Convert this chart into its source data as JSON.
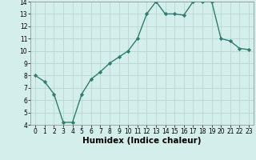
{
  "x": [
    0,
    1,
    2,
    3,
    4,
    5,
    6,
    7,
    8,
    9,
    10,
    11,
    12,
    13,
    14,
    15,
    16,
    17,
    18,
    19,
    20,
    21,
    22,
    23
  ],
  "y": [
    8.0,
    7.5,
    6.5,
    4.2,
    4.2,
    6.5,
    7.7,
    8.3,
    9.0,
    9.5,
    10.0,
    11.0,
    13.0,
    14.0,
    13.0,
    13.0,
    12.9,
    14.0,
    14.0,
    14.0,
    11.0,
    10.8,
    10.2,
    10.1
  ],
  "xlabel": "Humidex (Indice chaleur)",
  "ylim": [
    4,
    14
  ],
  "xlim": [
    -0.5,
    23.5
  ],
  "yticks": [
    4,
    5,
    6,
    7,
    8,
    9,
    10,
    11,
    12,
    13,
    14
  ],
  "xticks": [
    0,
    1,
    2,
    3,
    4,
    5,
    6,
    7,
    8,
    9,
    10,
    11,
    12,
    13,
    14,
    15,
    16,
    17,
    18,
    19,
    20,
    21,
    22,
    23
  ],
  "line_color": "#2e7d6e",
  "marker": "D",
  "marker_size": 2.2,
  "bg_color": "#d4eeeb",
  "grid_color": "#b8d8d4",
  "xlabel_fontsize": 7.5,
  "tick_fontsize": 5.5
}
